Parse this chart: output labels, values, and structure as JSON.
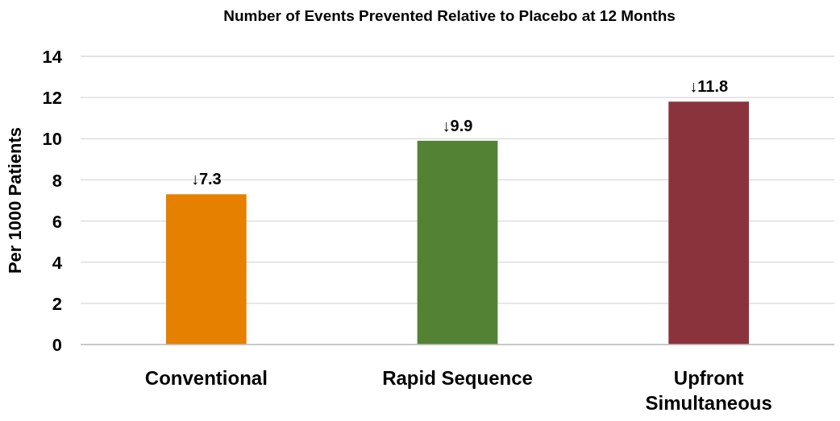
{
  "chart_data": {
    "type": "bar",
    "title": "Number of Events Prevented Relative to Placebo at 12 Months",
    "ylabel": "Per 1000 Patients",
    "categories": [
      "Conventional",
      "Rapid Sequence",
      "Upfront Simultaneous"
    ],
    "values": [
      7.3,
      9.9,
      11.8
    ],
    "colors": [
      "#e68000",
      "#548235",
      "#8b333c"
    ],
    "value_labels": [
      "↓7.3",
      "↓9.9",
      "↓11.8"
    ],
    "ylim": [
      0,
      14
    ],
    "yticks": [
      0,
      2,
      4,
      6,
      8,
      10,
      12,
      14
    ],
    "grid": "y"
  }
}
